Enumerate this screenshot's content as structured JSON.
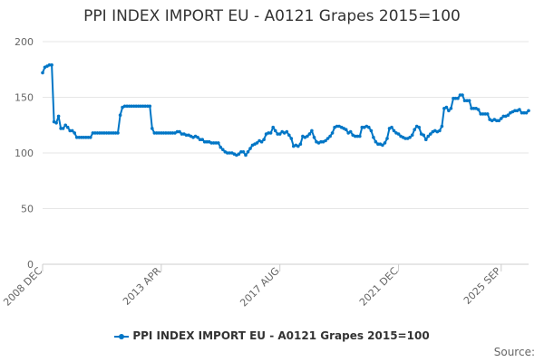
{
  "title": "PPI INDEX IMPORT EU - A0121 Grapes 2015=100",
  "source_label": "Source:",
  "colors": {
    "series": "#0076c6",
    "grid": "#e6e6e6",
    "axis": "#cccccc",
    "text": "#666666"
  },
  "chart_data": {
    "type": "line",
    "title": "PPI INDEX IMPORT EU - A0121 Grapes 2015=100",
    "xlabel": "",
    "ylabel": "",
    "ylim": [
      0,
      200
    ],
    "yticks": [
      0,
      50,
      100,
      150,
      200
    ],
    "grid": true,
    "legend_position": "bottom",
    "xticks": [
      {
        "label": "2008 DEC",
        "date": "2008-12"
      },
      {
        "label": "2013 APR",
        "date": "2013-04"
      },
      {
        "label": "2017 AUG",
        "date": "2017-08"
      },
      {
        "label": "2021 DEC",
        "date": "2021-12"
      },
      {
        "label": "2025 SEP",
        "date": "2025-09"
      }
    ],
    "series": [
      {
        "name": "PPI INDEX IMPORT EU - A0121 Grapes 2015=100",
        "points": [
          [
            "2008-12",
            172
          ],
          [
            "2009-01",
            177
          ],
          [
            "2009-02",
            178
          ],
          [
            "2009-03",
            179
          ],
          [
            "2009-04",
            179
          ],
          [
            "2009-05",
            128
          ],
          [
            "2009-06",
            127
          ],
          [
            "2009-07",
            133
          ],
          [
            "2009-08",
            122
          ],
          [
            "2009-09",
            122
          ],
          [
            "2009-10",
            125
          ],
          [
            "2009-11",
            123
          ],
          [
            "2009-12",
            120
          ],
          [
            "2010-01",
            120
          ],
          [
            "2010-02",
            118
          ],
          [
            "2010-03",
            114
          ],
          [
            "2010-04",
            114
          ],
          [
            "2010-05",
            114
          ],
          [
            "2010-06",
            114
          ],
          [
            "2010-07",
            114
          ],
          [
            "2010-08",
            114
          ],
          [
            "2010-09",
            114
          ],
          [
            "2010-10",
            118
          ],
          [
            "2010-11",
            118
          ],
          [
            "2010-12",
            118
          ],
          [
            "2011-01",
            118
          ],
          [
            "2011-02",
            118
          ],
          [
            "2011-03",
            118
          ],
          [
            "2011-04",
            118
          ],
          [
            "2011-05",
            118
          ],
          [
            "2011-06",
            118
          ],
          [
            "2011-07",
            118
          ],
          [
            "2011-08",
            118
          ],
          [
            "2011-09",
            118
          ],
          [
            "2011-10",
            134
          ],
          [
            "2011-11",
            141
          ],
          [
            "2011-12",
            142
          ],
          [
            "2012-01",
            142
          ],
          [
            "2012-02",
            142
          ],
          [
            "2012-03",
            142
          ],
          [
            "2012-04",
            142
          ],
          [
            "2012-05",
            142
          ],
          [
            "2012-06",
            142
          ],
          [
            "2012-07",
            142
          ],
          [
            "2012-08",
            142
          ],
          [
            "2012-09",
            142
          ],
          [
            "2012-10",
            142
          ],
          [
            "2012-11",
            142
          ],
          [
            "2012-12",
            122
          ],
          [
            "2013-01",
            118
          ],
          [
            "2013-02",
            118
          ],
          [
            "2013-03",
            118
          ],
          [
            "2013-04",
            118
          ],
          [
            "2013-05",
            118
          ],
          [
            "2013-06",
            118
          ],
          [
            "2013-07",
            118
          ],
          [
            "2013-08",
            118
          ],
          [
            "2013-09",
            118
          ],
          [
            "2013-10",
            118
          ],
          [
            "2013-11",
            119
          ],
          [
            "2013-12",
            119
          ],
          [
            "2014-01",
            117
          ],
          [
            "2014-02",
            117
          ],
          [
            "2014-03",
            116
          ],
          [
            "2014-04",
            116
          ],
          [
            "2014-05",
            115
          ],
          [
            "2014-06",
            114
          ],
          [
            "2014-07",
            115
          ],
          [
            "2014-08",
            114
          ],
          [
            "2014-09",
            112
          ],
          [
            "2014-10",
            112
          ],
          [
            "2014-11",
            110
          ],
          [
            "2014-12",
            110
          ],
          [
            "2015-01",
            110
          ],
          [
            "2015-02",
            109
          ],
          [
            "2015-03",
            109
          ],
          [
            "2015-04",
            109
          ],
          [
            "2015-05",
            109
          ],
          [
            "2015-06",
            105
          ],
          [
            "2015-07",
            103
          ],
          [
            "2015-08",
            101
          ],
          [
            "2015-09",
            100
          ],
          [
            "2015-10",
            100
          ],
          [
            "2015-11",
            100
          ],
          [
            "2015-12",
            99
          ],
          [
            "2016-01",
            98
          ],
          [
            "2016-02",
            99
          ],
          [
            "2016-03",
            101
          ],
          [
            "2016-04",
            101
          ],
          [
            "2016-05",
            98
          ],
          [
            "2016-06",
            101
          ],
          [
            "2016-07",
            104
          ],
          [
            "2016-08",
            107
          ],
          [
            "2016-09",
            108
          ],
          [
            "2016-10",
            109
          ],
          [
            "2016-11",
            111
          ],
          [
            "2016-12",
            110
          ],
          [
            "2017-01",
            112
          ],
          [
            "2017-02",
            117
          ],
          [
            "2017-03",
            118
          ],
          [
            "2017-04",
            118
          ],
          [
            "2017-05",
            123
          ],
          [
            "2017-06",
            120
          ],
          [
            "2017-07",
            117
          ],
          [
            "2017-08",
            117
          ],
          [
            "2017-09",
            119
          ],
          [
            "2017-10",
            118
          ],
          [
            "2017-11",
            119
          ],
          [
            "2017-12",
            116
          ],
          [
            "2018-01",
            113
          ],
          [
            "2018-02",
            106
          ],
          [
            "2018-03",
            107
          ],
          [
            "2018-04",
            106
          ],
          [
            "2018-05",
            108
          ],
          [
            "2018-06",
            115
          ],
          [
            "2018-07",
            114
          ],
          [
            "2018-08",
            115
          ],
          [
            "2018-09",
            117
          ],
          [
            "2018-10",
            120
          ],
          [
            "2018-11",
            114
          ],
          [
            "2018-12",
            110
          ],
          [
            "2019-01",
            109
          ],
          [
            "2019-02",
            110
          ],
          [
            "2019-03",
            110
          ],
          [
            "2019-04",
            111
          ],
          [
            "2019-05",
            113
          ],
          [
            "2019-06",
            115
          ],
          [
            "2019-07",
            118
          ],
          [
            "2019-08",
            123
          ],
          [
            "2019-09",
            124
          ],
          [
            "2019-10",
            124
          ],
          [
            "2019-11",
            123
          ],
          [
            "2019-12",
            122
          ],
          [
            "2020-01",
            121
          ],
          [
            "2020-02",
            118
          ],
          [
            "2020-03",
            119
          ],
          [
            "2020-04",
            116
          ],
          [
            "2020-05",
            115
          ],
          [
            "2020-06",
            115
          ],
          [
            "2020-07",
            115
          ],
          [
            "2020-08",
            123
          ],
          [
            "2020-09",
            123
          ],
          [
            "2020-10",
            124
          ],
          [
            "2020-11",
            123
          ],
          [
            "2020-12",
            120
          ],
          [
            "2021-01",
            114
          ],
          [
            "2021-02",
            110
          ],
          [
            "2021-03",
            108
          ],
          [
            "2021-04",
            108
          ],
          [
            "2021-05",
            107
          ],
          [
            "2021-06",
            109
          ],
          [
            "2021-07",
            113
          ],
          [
            "2021-08",
            122
          ],
          [
            "2021-09",
            123
          ],
          [
            "2021-10",
            120
          ],
          [
            "2021-11",
            118
          ],
          [
            "2021-12",
            117
          ],
          [
            "2022-01",
            115
          ],
          [
            "2022-02",
            114
          ],
          [
            "2022-03",
            113
          ],
          [
            "2022-04",
            113
          ],
          [
            "2022-05",
            114
          ],
          [
            "2022-06",
            116
          ],
          [
            "2022-07",
            121
          ],
          [
            "2022-08",
            124
          ],
          [
            "2022-09",
            123
          ],
          [
            "2022-10",
            117
          ],
          [
            "2022-11",
            116
          ],
          [
            "2022-12",
            112
          ],
          [
            "2023-01",
            115
          ],
          [
            "2023-02",
            117
          ],
          [
            "2023-03",
            119
          ],
          [
            "2023-04",
            120
          ],
          [
            "2023-05",
            119
          ],
          [
            "2023-06",
            120
          ],
          [
            "2023-07",
            124
          ],
          [
            "2023-08",
            140
          ],
          [
            "2023-09",
            141
          ],
          [
            "2023-10",
            138
          ],
          [
            "2023-11",
            140
          ],
          [
            "2023-12",
            149
          ],
          [
            "2024-01",
            149
          ],
          [
            "2024-02",
            149
          ],
          [
            "2024-03",
            152
          ],
          [
            "2024-04",
            152
          ],
          [
            "2024-05",
            147
          ],
          [
            "2024-06",
            147
          ],
          [
            "2024-07",
            147
          ],
          [
            "2024-08",
            140
          ],
          [
            "2024-09",
            140
          ],
          [
            "2024-10",
            140
          ],
          [
            "2024-11",
            139
          ],
          [
            "2024-12",
            135
          ],
          [
            "2025-01",
            135
          ],
          [
            "2025-02",
            135
          ],
          [
            "2025-03",
            135
          ],
          [
            "2025-04",
            130
          ],
          [
            "2025-05",
            129
          ],
          [
            "2025-06",
            130
          ],
          [
            "2025-07",
            129
          ],
          [
            "2025-08",
            129
          ],
          [
            "2025-09",
            131
          ],
          [
            "2025-10",
            133
          ],
          [
            "2025-11",
            133
          ],
          [
            "2025-12",
            134
          ],
          [
            "2026-01",
            136
          ],
          [
            "2026-02",
            137
          ],
          [
            "2026-03",
            138
          ],
          [
            "2026-04",
            138
          ],
          [
            "2026-05",
            139
          ],
          [
            "2026-06",
            136
          ],
          [
            "2026-07",
            136
          ],
          [
            "2026-08",
            136
          ],
          [
            "2026-09",
            138
          ]
        ]
      }
    ]
  }
}
